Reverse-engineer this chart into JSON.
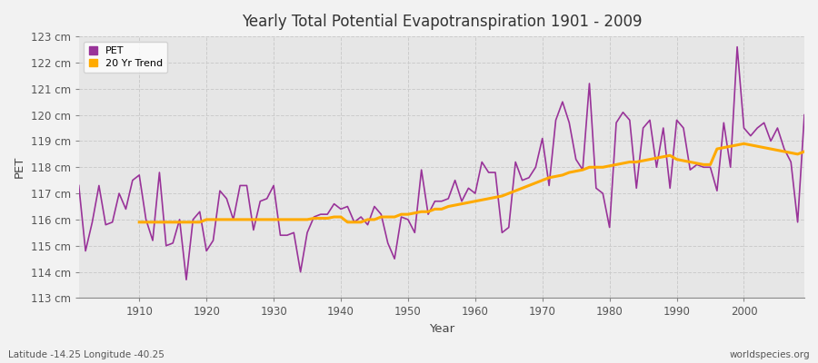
{
  "title": "Yearly Total Potential Evapotranspiration 1901 - 2009",
  "xlabel": "Year",
  "ylabel": "PET",
  "footnote_left": "Latitude -14.25 Longitude -40.25",
  "footnote_right": "worldspecies.org",
  "pet_color": "#993399",
  "trend_color": "#ffaa00",
  "fig_bg": "#f0f0f0",
  "plot_bg": "#e8e8e8",
  "ylim": [
    113,
    123
  ],
  "yticks": [
    113,
    114,
    115,
    116,
    117,
    118,
    119,
    120,
    121,
    122,
    123
  ],
  "xticks": [
    1910,
    1920,
    1930,
    1940,
    1950,
    1960,
    1970,
    1980,
    1990,
    2000
  ],
  "years": [
    1901,
    1902,
    1903,
    1904,
    1905,
    1906,
    1907,
    1908,
    1909,
    1910,
    1911,
    1912,
    1913,
    1914,
    1915,
    1916,
    1917,
    1918,
    1919,
    1920,
    1921,
    1922,
    1923,
    1924,
    1925,
    1926,
    1927,
    1928,
    1929,
    1930,
    1931,
    1932,
    1933,
    1934,
    1935,
    1936,
    1937,
    1938,
    1939,
    1940,
    1941,
    1942,
    1943,
    1944,
    1945,
    1946,
    1947,
    1948,
    1949,
    1950,
    1951,
    1952,
    1953,
    1954,
    1955,
    1956,
    1957,
    1958,
    1959,
    1960,
    1961,
    1962,
    1963,
    1964,
    1965,
    1966,
    1967,
    1968,
    1969,
    1970,
    1971,
    1972,
    1973,
    1974,
    1975,
    1976,
    1977,
    1978,
    1979,
    1980,
    1981,
    1982,
    1983,
    1984,
    1985,
    1986,
    1987,
    1988,
    1989,
    1990,
    1991,
    1992,
    1993,
    1994,
    1995,
    1996,
    1997,
    1998,
    1999,
    2000,
    2001,
    2002,
    2003,
    2004,
    2005,
    2006,
    2007,
    2008,
    2009
  ],
  "pet_values": [
    117.3,
    114.8,
    115.9,
    117.3,
    115.8,
    115.9,
    117.0,
    116.4,
    117.5,
    117.7,
    116.0,
    115.2,
    117.8,
    115.0,
    115.1,
    116.0,
    113.7,
    116.0,
    116.3,
    114.8,
    115.2,
    117.1,
    116.8,
    116.0,
    117.3,
    117.3,
    115.6,
    116.7,
    116.8,
    117.3,
    115.4,
    115.4,
    115.5,
    114.0,
    115.5,
    116.1,
    116.2,
    116.2,
    116.6,
    116.4,
    116.5,
    115.9,
    116.1,
    115.8,
    116.5,
    116.2,
    115.1,
    114.5,
    116.1,
    116.0,
    115.5,
    117.9,
    116.2,
    116.7,
    116.7,
    116.8,
    117.5,
    116.7,
    117.2,
    117.0,
    118.2,
    117.8,
    117.8,
    115.5,
    115.7,
    118.2,
    117.5,
    117.6,
    118.0,
    119.1,
    117.3,
    119.8,
    120.5,
    119.7,
    118.3,
    117.9,
    121.2,
    117.2,
    117.0,
    115.7,
    119.7,
    120.1,
    119.8,
    117.2,
    119.5,
    119.8,
    118.0,
    119.5,
    117.2,
    119.8,
    119.5,
    117.9,
    118.1,
    118.0,
    118.0,
    117.1,
    119.7,
    118.0,
    122.6,
    119.5,
    119.2,
    119.5,
    119.7,
    119.0,
    119.5,
    118.7,
    118.2,
    115.9,
    120.0
  ],
  "trend_years": [
    1910,
    1911,
    1912,
    1913,
    1914,
    1915,
    1916,
    1917,
    1918,
    1919,
    1920,
    1921,
    1922,
    1923,
    1924,
    1925,
    1926,
    1927,
    1928,
    1929,
    1930,
    1931,
    1932,
    1933,
    1934,
    1935,
    1936,
    1937,
    1938,
    1939,
    1940,
    1941,
    1942,
    1943,
    1944,
    1945,
    1946,
    1947,
    1948,
    1949,
    1950,
    1951,
    1952,
    1953,
    1954,
    1955,
    1956,
    1957,
    1958,
    1959,
    1960,
    1961,
    1962,
    1963,
    1964,
    1965,
    1966,
    1967,
    1968,
    1969,
    1970,
    1971,
    1972,
    1973,
    1974,
    1975,
    1976,
    1977,
    1978,
    1979,
    1980,
    1981,
    1982,
    1983,
    1984,
    1985,
    1986,
    1987,
    1988,
    1989,
    1990,
    1991,
    1992,
    1993,
    1994,
    1995,
    1996,
    1997,
    1998,
    1999,
    2000,
    2001,
    2002,
    2003,
    2004,
    2005,
    2006,
    2007,
    2008,
    2009
  ],
  "trend_values": [
    115.9,
    115.9,
    115.9,
    115.9,
    115.9,
    115.9,
    115.9,
    115.9,
    115.9,
    115.9,
    116.0,
    116.0,
    116.0,
    116.0,
    116.0,
    116.0,
    116.0,
    116.0,
    116.0,
    116.0,
    116.0,
    116.0,
    116.0,
    116.0,
    116.0,
    116.0,
    116.05,
    116.05,
    116.05,
    116.1,
    116.1,
    115.9,
    115.9,
    115.9,
    116.0,
    116.0,
    116.1,
    116.1,
    116.1,
    116.2,
    116.2,
    116.25,
    116.3,
    116.3,
    116.4,
    116.4,
    116.5,
    116.55,
    116.6,
    116.65,
    116.7,
    116.75,
    116.8,
    116.85,
    116.9,
    117.0,
    117.1,
    117.2,
    117.3,
    117.4,
    117.5,
    117.6,
    117.65,
    117.7,
    117.8,
    117.85,
    117.9,
    118.0,
    118.0,
    118.0,
    118.05,
    118.1,
    118.15,
    118.2,
    118.2,
    118.25,
    118.3,
    118.35,
    118.4,
    118.45,
    118.3,
    118.25,
    118.2,
    118.15,
    118.1,
    118.1,
    118.7,
    118.75,
    118.8,
    118.85,
    118.9,
    118.85,
    118.8,
    118.75,
    118.7,
    118.65,
    118.6,
    118.55,
    118.5,
    118.6
  ]
}
